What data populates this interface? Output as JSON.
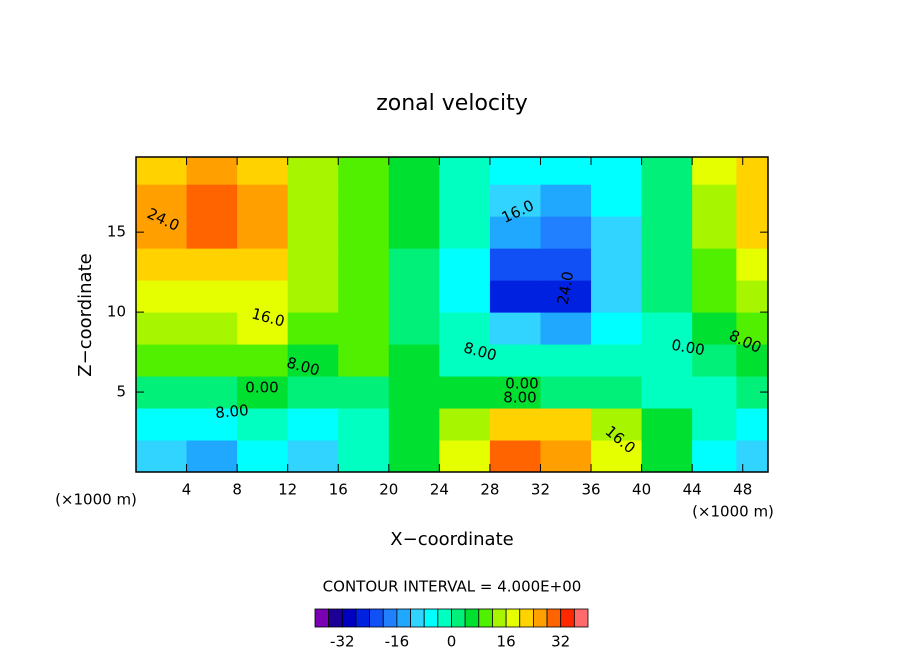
{
  "chart_data": {
    "type": "contour",
    "title": "zonal velocity",
    "x_label": "X−coordinate",
    "y_label": "Z−coordinate",
    "x_unit_left": "(×1000 m)",
    "x_unit_right": "(×1000 m)",
    "contour_interval_text": "CONTOUR INTERVAL = 4.000E+00",
    "xlim": [
      0,
      50
    ],
    "xticks": [
      4,
      8,
      12,
      16,
      20,
      24,
      28,
      32,
      36,
      40,
      44,
      48
    ],
    "ylim": [
      0,
      19.7
    ],
    "yticks": [
      5,
      10,
      15
    ],
    "x": [
      2,
      6,
      10,
      14,
      18,
      22,
      26,
      30,
      34,
      38,
      42,
      46,
      49
    ],
    "z": [
      1,
      3,
      5,
      7,
      9,
      11,
      13,
      15,
      17,
      19
    ],
    "values": [
      [
        -12,
        -14,
        -6,
        -10,
        -4,
        6,
        16,
        28,
        26,
        18,
        6,
        -8,
        -12
      ],
      [
        -8,
        -8,
        -4,
        -6,
        -2,
        6,
        12,
        20,
        20,
        14,
        4,
        -4,
        -6
      ],
      [
        2,
        2,
        4,
        2,
        2,
        4,
        6,
        4,
        2,
        2,
        -2,
        -2,
        0
      ],
      [
        8,
        10,
        10,
        6,
        8,
        4,
        -2,
        -4,
        -4,
        -2,
        -2,
        2,
        4
      ],
      [
        14,
        14,
        16,
        10,
        10,
        2,
        -4,
        -12,
        -14,
        -6,
        -2,
        6,
        8
      ],
      [
        18,
        18,
        16,
        12,
        8,
        2,
        -8,
        -26,
        -26,
        -12,
        0,
        8,
        12
      ],
      [
        20,
        22,
        20,
        14,
        8,
        2,
        -6,
        -22,
        -24,
        -12,
        2,
        10,
        16
      ],
      [
        24,
        28,
        24,
        14,
        8,
        4,
        -4,
        -14,
        -18,
        -10,
        2,
        12,
        20
      ],
      [
        26,
        28,
        24,
        14,
        8,
        4,
        -2,
        -10,
        -14,
        -8,
        2,
        14,
        20
      ],
      [
        22,
        24,
        20,
        12,
        8,
        4,
        -2,
        -8,
        -8,
        -6,
        2,
        16,
        20
      ]
    ],
    "contour_labels": [
      "24.0",
      "16.0",
      "24.0",
      "16.0",
      "8.00",
      "8.00",
      "0.00",
      "0.00",
      "8.00",
      "8.00",
      "16.0",
      "0.00",
      "8.00"
    ],
    "colorbar": {
      "levels": [
        -40,
        -36,
        -32,
        -28,
        -24,
        -20,
        -16,
        -12,
        -8,
        -4,
        0,
        4,
        8,
        12,
        16,
        20,
        24,
        28,
        32,
        36,
        40
      ],
      "colors": [
        "#7a00b4",
        "#1c0096",
        "#0000c0",
        "#0022e0",
        "#1050f5",
        "#2080ff",
        "#20a8ff",
        "#30d4ff",
        "#00ffff",
        "#00ffc0",
        "#00f07a",
        "#00e030",
        "#50f000",
        "#a8f500",
        "#e6ff00",
        "#ffd200",
        "#ffa000",
        "#ff6400",
        "#ff2800",
        "#ff6a6a",
        "#ffa8a8"
      ],
      "ticks": [
        -32,
        -16,
        0,
        16,
        32
      ]
    }
  }
}
